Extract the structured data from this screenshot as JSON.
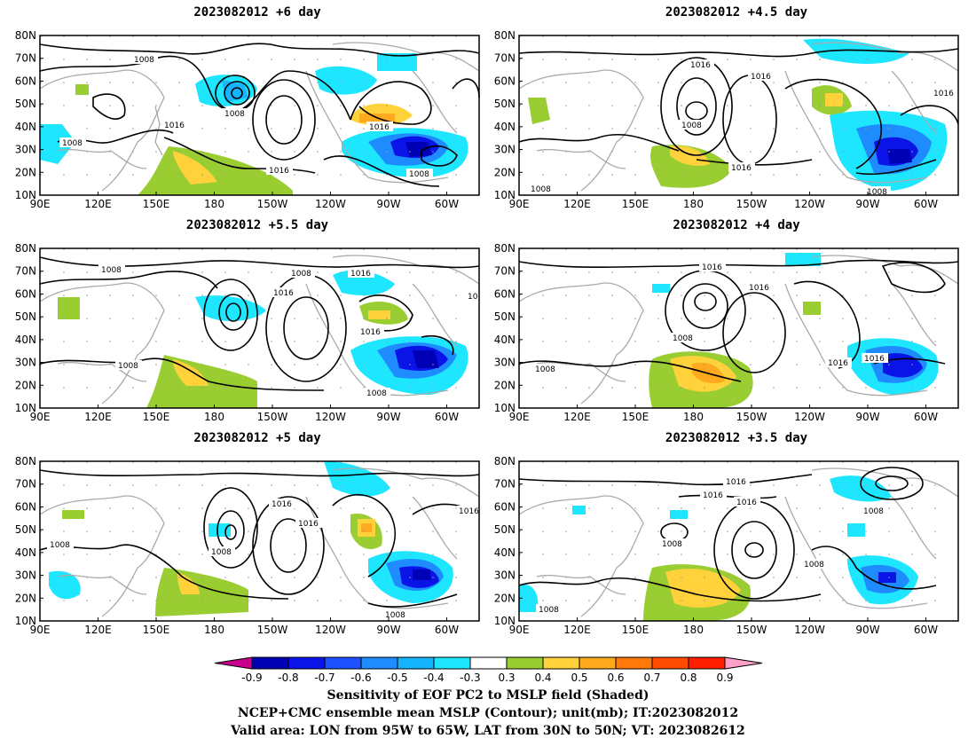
{
  "panels": [
    {
      "title": "2023082012  +6 day"
    },
    {
      "title": "2023082012  +4.5 day"
    },
    {
      "title": "2023082012  +5.5 day"
    },
    {
      "title": "2023082012  +4 day"
    },
    {
      "title": "2023082012  +5 day"
    },
    {
      "title": "2023082012  +3.5 day"
    }
  ],
  "axes": {
    "lat_ticks": [
      "10N",
      "20N",
      "30N",
      "40N",
      "50N",
      "60N",
      "70N",
      "80N"
    ],
    "lon_ticks": [
      "90E",
      "120E",
      "150E",
      "180",
      "150W",
      "120W",
      "90W",
      "60W"
    ]
  },
  "contour_labels": {
    "p0": [
      "1008",
      "1008",
      "1016",
      "1008",
      "1016",
      "1016",
      "1008"
    ],
    "p1": [
      "1016",
      "1016",
      "1008",
      "1016",
      "1008",
      "1016",
      "1008"
    ],
    "p2": [
      "1008",
      "1008",
      "1016",
      "1016",
      "1008",
      "1008",
      "1016",
      "10"
    ],
    "p3": [
      "1016",
      "1016",
      "1008",
      "1008",
      "1016",
      "1016"
    ],
    "p4": [
      "1016",
      "1008",
      "1016",
      "1008",
      "1016",
      "1008"
    ],
    "p5": [
      "1016",
      "1016",
      "1016",
      "1008",
      "1008",
      "1008",
      "1008"
    ]
  },
  "colorbar": {
    "ticks": [
      "-0.9",
      "-0.8",
      "-0.7",
      "-0.6",
      "-0.5",
      "-0.4",
      "-0.3",
      "0.3",
      "0.4",
      "0.5",
      "0.6",
      "0.7",
      "0.8",
      "0.9"
    ],
    "colors": [
      "#c8008c",
      "#0000b4",
      "#0a14e6",
      "#1e50ff",
      "#1e8cff",
      "#14b4ff",
      "#1ee6ff",
      "#ffffff",
      "#9acd32",
      "#ffd23c",
      "#ffaa1e",
      "#ff780a",
      "#ff4b00",
      "#ff1e00",
      "#ffa0c8"
    ]
  },
  "caption": {
    "line1": "Sensitivity of EOF PC2 to MSLP field (Shaded)",
    "line2": "NCEP+CMC ensemble mean MSLP (Contour); unit(mb); IT:2023082012",
    "line3": "Valid area: LON from 95W to 65W, LAT from 30N to 50N; VT: 2023082612"
  }
}
